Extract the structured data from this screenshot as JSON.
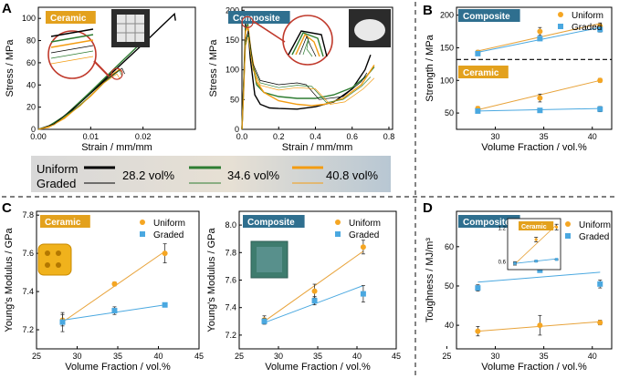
{
  "colors": {
    "uniform": "#f5a623",
    "uniform_line": "#e8a33a",
    "graded": "#4aa8e0",
    "ceramic_tag": "#e3a11d",
    "composite_tag": "#2f6f8f",
    "legend_box": "#c9d3da"
  },
  "panel_letters": [
    "A",
    "B",
    "C",
    "D"
  ],
  "legend_box": {
    "uniform_label": "Uniform",
    "graded_label": "Graded",
    "entries": [
      {
        "label": "28.2 vol%",
        "color": "#000000"
      },
      {
        "label": "34.6 vol%",
        "color": "#2e7d32"
      },
      {
        "label": "40.8 vol%",
        "color": "#f39c12"
      }
    ]
  },
  "chart_data": [
    {
      "id": "A1",
      "type": "line",
      "tag": "Ceramic",
      "xlabel": "Strain / mm/mm",
      "ylabel": "Stress / MPa",
      "xlim": [
        0,
        0.03
      ],
      "ylim": [
        0,
        110
      ],
      "xticks": [
        "0.00",
        "0.01",
        "0.02"
      ],
      "xtick_values": [
        0,
        0.01,
        0.02
      ],
      "yticks": [
        "0",
        "20",
        "40",
        "60",
        "80",
        "100"
      ],
      "ytick_values": [
        0,
        20,
        40,
        60,
        80,
        100
      ],
      "series": [
        {
          "color": "#000000",
          "width": 1.4,
          "x": [
            0,
            0.002,
            0.005,
            0.01,
            0.015,
            0.02,
            0.024,
            0.026,
            0.0262
          ],
          "y": [
            0,
            3,
            11,
            33,
            55,
            77,
            95,
            104,
            98
          ]
        },
        {
          "color": "#2e7d32",
          "width": 1.4,
          "x": [
            0,
            0.002,
            0.005,
            0.01,
            0.015,
            0.019,
            0.0205,
            0.021
          ],
          "y": [
            0,
            3,
            12,
            34,
            57,
            75,
            81,
            79
          ]
        },
        {
          "color": "#f39c12",
          "width": 1.4,
          "x": [
            0,
            0.002,
            0.005,
            0.01,
            0.014,
            0.0155,
            0.016
          ],
          "y": [
            0,
            2,
            10,
            30,
            49,
            54,
            52
          ]
        },
        {
          "color": "#000000",
          "width": 0.7,
          "x": [
            0,
            0.003,
            0.008,
            0.013,
            0.016,
            0.0165
          ],
          "y": [
            0,
            5,
            24,
            45,
            55,
            50
          ]
        },
        {
          "color": "#2e7d32",
          "width": 0.7,
          "x": [
            0,
            0.003,
            0.008,
            0.013,
            0.0155,
            0.016
          ],
          "y": [
            0,
            4,
            22,
            44,
            53,
            48
          ]
        },
        {
          "color": "#f39c12",
          "width": 0.7,
          "x": [
            0,
            0.003,
            0.008,
            0.012,
            0.015,
            0.0155
          ],
          "y": [
            0,
            4,
            21,
            40,
            50,
            46
          ]
        }
      ]
    },
    {
      "id": "A2",
      "type": "line",
      "tag": "Composite",
      "xlabel": "Strain / mm/mm",
      "ylabel": "Stress / MPa",
      "xlim": [
        0,
        0.82
      ],
      "ylim": [
        0,
        205
      ],
      "xticks": [
        "0.0",
        "0.2",
        "0.4",
        "0.6",
        "0.8"
      ],
      "xtick_values": [
        0,
        0.2,
        0.4,
        0.6,
        0.8
      ],
      "yticks": [
        "0",
        "50",
        "100",
        "150",
        "200"
      ],
      "ytick_values": [
        0,
        50,
        100,
        150,
        200
      ],
      "series": [
        {
          "color": "#000000",
          "width": 1.4,
          "x": [
            0,
            0.01,
            0.02,
            0.03,
            0.045,
            0.07,
            0.1,
            0.15,
            0.2,
            0.3,
            0.4,
            0.5,
            0.6,
            0.67,
            0.7
          ],
          "y": [
            0,
            80,
            180,
            185,
            120,
            58,
            42,
            36,
            35,
            34,
            38,
            46,
            68,
            100,
            125
          ]
        },
        {
          "color": "#2e7d32",
          "width": 1.4,
          "x": [
            0,
            0.01,
            0.02,
            0.032,
            0.05,
            0.08,
            0.12,
            0.2,
            0.3,
            0.4,
            0.5,
            0.6,
            0.68,
            0.72
          ],
          "y": [
            0,
            75,
            170,
            176,
            125,
            75,
            62,
            55,
            52,
            52,
            58,
            70,
            90,
            105
          ]
        },
        {
          "color": "#f39c12",
          "width": 1.4,
          "x": [
            0,
            0.01,
            0.02,
            0.033,
            0.05,
            0.08,
            0.12,
            0.2,
            0.3,
            0.38,
            0.45,
            0.55,
            0.65,
            0.72
          ],
          "y": [
            0,
            70,
            165,
            172,
            130,
            80,
            62,
            48,
            42,
            40,
            42,
            52,
            75,
            108
          ]
        },
        {
          "color": "#000000",
          "width": 0.7,
          "x": [
            0,
            0.02,
            0.035,
            0.06,
            0.1,
            0.2,
            0.3,
            0.35,
            0.42,
            0.55,
            0.65,
            0.68
          ],
          "y": [
            0,
            150,
            165,
            110,
            82,
            75,
            78,
            75,
            50,
            55,
            80,
            95
          ]
        },
        {
          "color": "#2e7d32",
          "width": 0.7,
          "x": [
            0,
            0.02,
            0.035,
            0.06,
            0.1,
            0.2,
            0.3,
            0.38,
            0.46,
            0.55,
            0.65,
            0.7
          ],
          "y": [
            0,
            145,
            160,
            105,
            78,
            70,
            74,
            72,
            45,
            50,
            72,
            88
          ]
        },
        {
          "color": "#f39c12",
          "width": 0.7,
          "x": [
            0,
            0.02,
            0.035,
            0.06,
            0.1,
            0.2,
            0.3,
            0.4,
            0.48,
            0.56,
            0.66,
            0.72
          ],
          "y": [
            0,
            140,
            155,
            100,
            74,
            66,
            70,
            68,
            42,
            46,
            68,
            86
          ]
        }
      ]
    },
    {
      "id": "B",
      "type": "scatter",
      "xlabel": "Volume Fraction / vol.%",
      "ylabel": "Strength / MPa",
      "xlim": [
        26,
        42
      ],
      "ylim": [
        25,
        212
      ],
      "xticks": [
        "30",
        "35",
        "40"
      ],
      "xtick_values": [
        30,
        35,
        40
      ],
      "yticks": [
        "50",
        "100",
        "150",
        "200"
      ],
      "ytick_values": [
        50,
        100,
        150,
        200
      ],
      "divider_y": 132,
      "legend": [
        "Uniform",
        "Graded"
      ],
      "groups": [
        {
          "tag": "Composite",
          "uniform": {
            "x": [
              28.2,
              34.6,
              40.8
            ],
            "y": [
              143,
              175,
              183
            ],
            "err": [
              3,
              6,
              5
            ]
          },
          "graded": {
            "x": [
              28.2,
              34.6,
              40.8
            ],
            "y": [
              141,
              164,
              178
            ],
            "err": [
              3,
              3,
              4
            ]
          },
          "uniform_fit": [
            [
              28.2,
              145
            ],
            [
              40.8,
              187
            ]
          ],
          "graded_fit": [
            [
              28.2,
              143
            ],
            [
              40.8,
              181
            ]
          ]
        },
        {
          "tag": "Ceramic",
          "uniform": {
            "x": [
              28.2,
              34.6,
              40.8
            ],
            "y": [
              57,
              73,
              100
            ],
            "err": [
              3,
              6,
              3
            ]
          },
          "graded": {
            "x": [
              28.2,
              34.6,
              40.8
            ],
            "y": [
              53,
              54,
              56
            ],
            "err": [
              3,
              3,
              4
            ]
          },
          "uniform_fit": [
            [
              28.2,
              55
            ],
            [
              40.8,
              100
            ]
          ],
          "graded_fit": [
            [
              28.2,
              53
            ],
            [
              40.8,
              57
            ]
          ]
        }
      ]
    },
    {
      "id": "C1",
      "type": "scatter",
      "tag": "Ceramic",
      "xlabel": "Volume Fraction / vol.%",
      "ylabel": "Young's Modulus / GPa",
      "xlim": [
        25,
        45
      ],
      "ylim": [
        7.1,
        7.82
      ],
      "xticks": [
        "25",
        "30",
        "35",
        "40",
        "45"
      ],
      "xtick_values": [
        25,
        30,
        35,
        40,
        45
      ],
      "yticks": [
        "7.2",
        "7.4",
        "7.6",
        "7.8"
      ],
      "ytick_values": [
        7.2,
        7.4,
        7.6,
        7.8
      ],
      "legend": [
        "Uniform",
        "Graded"
      ],
      "uniform": {
        "x": [
          28.2,
          34.6,
          40.8
        ],
        "y": [
          7.25,
          7.44,
          7.6
        ],
        "err": [
          0.03,
          0.01,
          0.05
        ]
      },
      "graded": {
        "x": [
          28.2,
          34.6,
          40.8
        ],
        "y": [
          7.24,
          7.3,
          7.33
        ],
        "err": [
          0.05,
          0.02,
          0.01
        ]
      },
      "uniform_fit": [
        [
          28.2,
          7.24
        ],
        [
          40.8,
          7.61
        ]
      ],
      "graded_fit": [
        [
          28.2,
          7.25
        ],
        [
          40.8,
          7.33
        ]
      ]
    },
    {
      "id": "C2",
      "type": "scatter",
      "tag": "Composite",
      "xlabel": "Volume Fraction / vol.%",
      "ylabel": "Young's Modulus / GPa",
      "xlim": [
        25,
        45
      ],
      "ylim": [
        7.1,
        8.1
      ],
      "xticks": [
        "25",
        "30",
        "35",
        "40",
        "45"
      ],
      "xtick_values": [
        25,
        30,
        35,
        40,
        45
      ],
      "yticks": [
        "7.2",
        "7.4",
        "7.6",
        "7.8",
        "8.0"
      ],
      "ytick_values": [
        7.2,
        7.4,
        7.6,
        7.8,
        8.0
      ],
      "legend": [
        "Uniform",
        "Graded"
      ],
      "uniform": {
        "x": [
          28.2,
          34.6,
          40.8
        ],
        "y": [
          7.31,
          7.52,
          7.84
        ],
        "err": [
          0.03,
          0.05,
          0.05
        ]
      },
      "graded": {
        "x": [
          28.2,
          34.6,
          40.8
        ],
        "y": [
          7.3,
          7.45,
          7.5
        ],
        "err": [
          0.02,
          0.03,
          0.06
        ]
      },
      "uniform_fit": [
        [
          28.2,
          7.3
        ],
        [
          40.8,
          7.81
        ]
      ],
      "graded_fit": [
        [
          28.2,
          7.29
        ],
        [
          40.8,
          7.56
        ]
      ]
    },
    {
      "id": "D",
      "type": "scatter",
      "tag": "Composite",
      "xlabel": "Volume Fraction / vol.%",
      "ylabel": "Toughness / MJ/m³",
      "xlim": [
        26,
        42
      ],
      "ylim": [
        34,
        69
      ],
      "xticks": [
        "25",
        "30",
        "35",
        "40"
      ],
      "xtick_values": [
        25,
        30,
        35,
        40
      ],
      "yticks": [
        "40",
        "50",
        "60"
      ],
      "ytick_values": [
        40,
        50,
        60
      ],
      "legend": [
        "Uniform",
        "Graded"
      ],
      "uniform": {
        "x": [
          28.2,
          34.6,
          40.8
        ],
        "y": [
          38.5,
          40,
          40.7
        ],
        "err": [
          1.2,
          2.5,
          0.6
        ]
      },
      "graded": {
        "x": [
          28.2,
          34.6,
          40.8
        ],
        "y": [
          49.5,
          54,
          50.5
        ],
        "err": [
          0.8,
          0.4,
          1.0
        ]
      },
      "uniform_fit": [
        [
          28.2,
          38.5
        ],
        [
          40.8,
          40.9
        ]
      ],
      "graded_fit": [
        [
          28.2,
          51
        ],
        [
          40.8,
          53.5
        ]
      ],
      "inset": {
        "tag": "Ceramic",
        "xlim": [
          26,
          42
        ],
        "ylim": [
          0.45,
          1.35
        ],
        "yticks": [
          "0.6",
          "1.2"
        ],
        "ytick_values": [
          0.6,
          1.2
        ],
        "uniform": {
          "x": [
            28.2,
            34.6,
            40.8
          ],
          "y": [
            0.56,
            0.98,
            1.2
          ],
          "err": [
            0.03,
            0.04,
            0.05
          ]
        },
        "graded": {
          "x": [
            28.2,
            34.6,
            40.8
          ],
          "y": [
            0.56,
            0.6,
            0.63
          ],
          "err": [
            0.01,
            0.01,
            0.01
          ]
        },
        "uniform_fit": [
          [
            28.2,
            0.55
          ],
          [
            40.8,
            1.24
          ]
        ],
        "graded_fit": [
          [
            28.2,
            0.56
          ],
          [
            40.8,
            0.64
          ]
        ]
      }
    }
  ]
}
